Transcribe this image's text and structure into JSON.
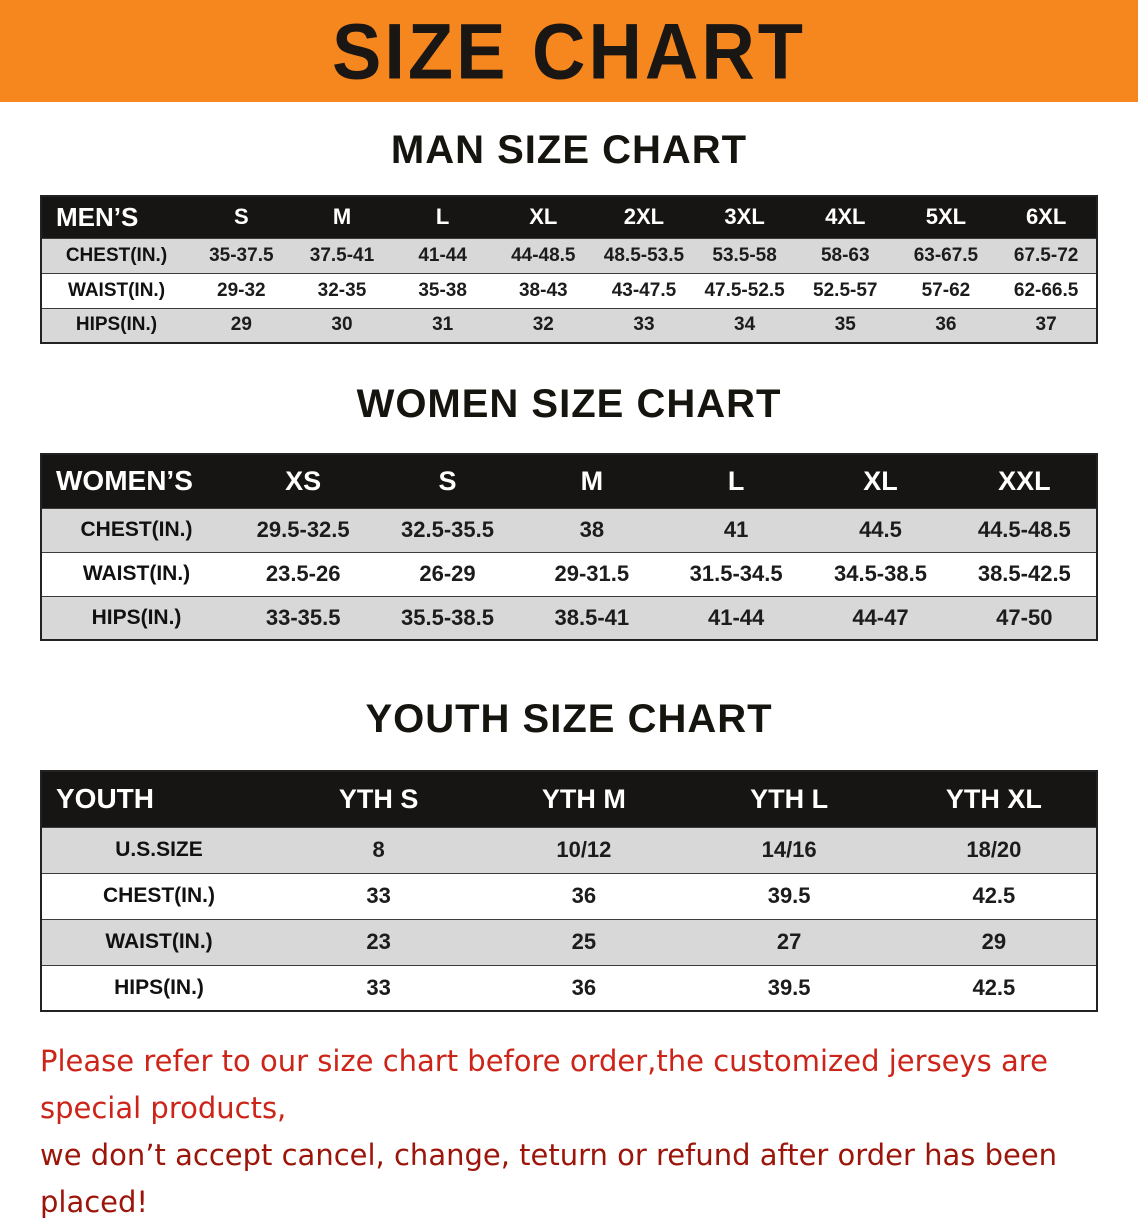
{
  "banner": {
    "title": "SIZE CHART",
    "background_color": "#f6861e",
    "text_color": "#191613"
  },
  "sections": [
    {
      "heading": "MAN SIZE CHART",
      "corner_label": "MEN’S",
      "columns": [
        "S",
        "M",
        "L",
        "XL",
        "2XL",
        "3XL",
        "4XL",
        "5XL",
        "6XL"
      ],
      "rows": [
        {
          "label": "CHEST(IN.)",
          "values": [
            "35-37.5",
            "37.5-41",
            "41-44",
            "44-48.5",
            "48.5-53.5",
            "53.5-58",
            "58-63",
            "63-67.5",
            "67.5-72"
          ]
        },
        {
          "label": "WAIST(IN.)",
          "values": [
            "29-32",
            "32-35",
            "35-38",
            "38-43",
            "43-47.5",
            "47.5-52.5",
            "52.5-57",
            "57-62",
            "62-66.5"
          ]
        },
        {
          "label": "HIPS(IN.)",
          "values": [
            "29",
            "30",
            "31",
            "32",
            "33",
            "34",
            "35",
            "36",
            "37"
          ]
        }
      ]
    },
    {
      "heading": "WOMEN SIZE CHART",
      "corner_label": "WOMEN’S",
      "columns": [
        "XS",
        "S",
        "M",
        "L",
        "XL",
        "XXL"
      ],
      "rows": [
        {
          "label": "CHEST(IN.)",
          "values": [
            "29.5-32.5",
            "32.5-35.5",
            "38",
            "41",
            "44.5",
            "44.5-48.5"
          ]
        },
        {
          "label": "WAIST(IN.)",
          "values": [
            "23.5-26",
            "26-29",
            "29-31.5",
            "31.5-34.5",
            "34.5-38.5",
            "38.5-42.5"
          ]
        },
        {
          "label": "HIPS(IN.)",
          "values": [
            "33-35.5",
            "35.5-38.5",
            "38.5-41",
            "41-44",
            "44-47",
            "47-50"
          ]
        }
      ]
    },
    {
      "heading": "YOUTH SIZE CHART",
      "corner_label": "YOUTH",
      "columns": [
        "YTH S",
        "YTH M",
        "YTH L",
        "YTH XL"
      ],
      "rows": [
        {
          "label": "U.S.SIZE",
          "values": [
            "8",
            "10/12",
            "14/16",
            "18/20"
          ]
        },
        {
          "label": "CHEST(IN.)",
          "values": [
            "33",
            "36",
            "39.5",
            "42.5"
          ]
        },
        {
          "label": "WAIST(IN.)",
          "values": [
            "23",
            "25",
            "27",
            "29"
          ]
        },
        {
          "label": "HIPS(IN.)",
          "values": [
            "33",
            "36",
            "39.5",
            "42.5"
          ]
        }
      ]
    }
  ],
  "footer": {
    "line1": "Please refer to our size chart before order,the customized jerseys are special products,",
    "line2": "we don’t accept cancel, change, teturn or refund after order has been placed!",
    "line1_color": "#cc2418",
    "line2_color": "#9b150a"
  }
}
